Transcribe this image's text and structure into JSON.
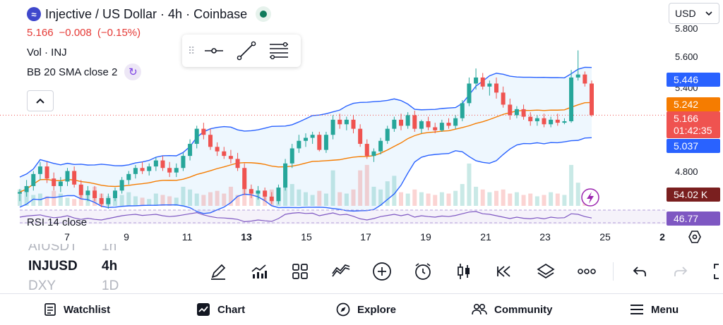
{
  "header": {
    "title": "Injective / US Dollar · 4h · Coinbase",
    "logo_letter": "≈",
    "price": "5.166",
    "change": "−0.008",
    "change_pct": "(−0.15%)",
    "volume_label": "Vol · INJ",
    "bb_label": "BB 20 SMA close 2",
    "rsi_label": "RSI 14 close"
  },
  "currency": {
    "label": "USD"
  },
  "price_axis": [
    "5.800",
    "5.600",
    "5.400",
    "4.800"
  ],
  "tags": {
    "bb_upper": "5.446",
    "bb_basis": "5.242",
    "last_price": "5.166",
    "countdown": "01:42:35",
    "bb_lower": "5.037",
    "volume": "54.02 K",
    "rsi": "46.77"
  },
  "time_axis": [
    "7",
    "9",
    "11",
    "13",
    "15",
    "17",
    "19",
    "21",
    "23",
    "25",
    "2"
  ],
  "symbol_wheel": [
    {
      "symbol": "AIUSDT",
      "tf": "1h",
      "state": "faded"
    },
    {
      "symbol": "INJUSD",
      "tf": "4h",
      "state": "active"
    },
    {
      "symbol": "DXY",
      "tf": "1D",
      "state": "faded"
    }
  ],
  "nav": {
    "watchlist": "Watchlist",
    "chart": "Chart",
    "explore": "Explore",
    "community": "Community",
    "menu": "Menu"
  },
  "colors": {
    "up": "#26a69a",
    "down": "#ef5350",
    "bb_band": "#2962ff",
    "bb_basis": "#f57c00",
    "rsi": "#7e57c2",
    "accent": "#2962ff"
  },
  "chart_data": {
    "type": "candlestick",
    "symbol": "INJUSD",
    "interval": "4h",
    "ylim": [
      4.55,
      5.85
    ],
    "candles": [
      [
        4.65,
        4.68,
        4.6,
        4.66
      ],
      [
        4.66,
        4.74,
        4.63,
        4.7
      ],
      [
        4.7,
        4.8,
        4.67,
        4.78
      ],
      [
        4.78,
        4.86,
        4.74,
        4.83
      ],
      [
        4.83,
        4.86,
        4.72,
        4.75
      ],
      [
        4.75,
        4.79,
        4.67,
        4.7
      ],
      [
        4.7,
        4.76,
        4.66,
        4.73
      ],
      [
        4.73,
        4.82,
        4.7,
        4.8
      ],
      [
        4.8,
        4.83,
        4.69,
        4.71
      ],
      [
        4.71,
        4.74,
        4.62,
        4.64
      ],
      [
        4.64,
        4.7,
        4.6,
        4.67
      ],
      [
        4.67,
        4.7,
        4.6,
        4.62
      ],
      [
        4.62,
        4.65,
        4.56,
        4.58
      ],
      [
        4.58,
        4.65,
        4.55,
        4.62
      ],
      [
        4.62,
        4.69,
        4.6,
        4.67
      ],
      [
        4.67,
        4.76,
        4.65,
        4.74
      ],
      [
        4.74,
        4.8,
        4.71,
        4.78
      ],
      [
        4.78,
        4.84,
        4.75,
        4.82
      ],
      [
        4.82,
        4.86,
        4.78,
        4.8
      ],
      [
        4.8,
        4.85,
        4.77,
        4.83
      ],
      [
        4.83,
        4.89,
        4.8,
        4.87
      ],
      [
        4.87,
        4.9,
        4.8,
        4.82
      ],
      [
        4.82,
        4.86,
        4.76,
        4.79
      ],
      [
        4.79,
        4.85,
        4.76,
        4.82
      ],
      [
        4.82,
        4.92,
        4.8,
        4.9
      ],
      [
        4.9,
        5.01,
        4.87,
        4.98
      ],
      [
        4.98,
        5.1,
        4.95,
        5.08
      ],
      [
        5.08,
        5.12,
        5.01,
        5.04
      ],
      [
        5.04,
        5.08,
        4.94,
        4.96
      ],
      [
        4.96,
        4.99,
        4.9,
        4.93
      ],
      [
        4.93,
        4.96,
        4.88,
        4.9
      ],
      [
        4.9,
        4.94,
        4.85,
        4.88
      ],
      [
        4.88,
        4.92,
        4.8,
        4.82
      ],
      [
        4.82,
        4.85,
        4.64,
        4.68
      ],
      [
        4.68,
        4.71,
        4.62,
        4.65
      ],
      [
        4.65,
        4.7,
        4.61,
        4.67
      ],
      [
        4.67,
        4.69,
        4.6,
        4.63
      ],
      [
        4.63,
        4.66,
        4.58,
        4.6
      ],
      [
        4.6,
        4.71,
        4.58,
        4.69
      ],
      [
        4.69,
        4.88,
        4.67,
        4.85
      ],
      [
        4.85,
        4.98,
        4.82,
        4.95
      ],
      [
        4.95,
        5.04,
        4.92,
        5.0
      ],
      [
        5.0,
        5.05,
        4.96,
        5.02
      ],
      [
        5.02,
        5.06,
        4.98,
        5.04
      ],
      [
        5.04,
        5.06,
        4.93,
        4.94
      ],
      [
        4.94,
        5.06,
        4.92,
        5.04
      ],
      [
        5.04,
        5.17,
        5.01,
        5.14
      ],
      [
        5.14,
        5.18,
        5.08,
        5.11
      ],
      [
        5.11,
        5.16,
        5.07,
        5.14
      ],
      [
        5.14,
        5.17,
        5.05,
        5.08
      ],
      [
        5.08,
        5.11,
        4.96,
        4.98
      ],
      [
        4.98,
        5.01,
        4.88,
        4.9
      ],
      [
        4.9,
        4.95,
        4.86,
        4.93
      ],
      [
        4.93,
        5.02,
        4.91,
        5.0
      ],
      [
        5.0,
        5.1,
        4.98,
        5.08
      ],
      [
        5.08,
        5.16,
        5.06,
        5.14
      ],
      [
        5.14,
        5.18,
        5.07,
        5.1
      ],
      [
        5.1,
        5.19,
        5.08,
        5.17
      ],
      [
        5.17,
        5.2,
        5.06,
        5.08
      ],
      [
        5.08,
        5.14,
        5.05,
        5.13
      ],
      [
        5.13,
        5.16,
        5.07,
        5.09
      ],
      [
        5.09,
        5.12,
        5.05,
        5.07
      ],
      [
        5.07,
        5.14,
        5.06,
        5.12
      ],
      [
        5.12,
        5.15,
        5.08,
        5.1
      ],
      [
        5.1,
        5.17,
        5.08,
        5.15
      ],
      [
        5.15,
        5.27,
        5.13,
        5.25
      ],
      [
        5.25,
        5.42,
        5.23,
        5.38
      ],
      [
        5.38,
        5.48,
        5.34,
        5.42
      ],
      [
        5.42,
        5.45,
        5.34,
        5.36
      ],
      [
        5.36,
        5.4,
        5.3,
        5.38
      ],
      [
        5.38,
        5.42,
        5.28,
        5.32
      ],
      [
        5.32,
        5.36,
        5.22,
        5.24
      ],
      [
        5.24,
        5.28,
        5.14,
        5.17
      ],
      [
        5.17,
        5.23,
        5.15,
        5.21
      ],
      [
        5.21,
        5.24,
        5.14,
        5.16
      ],
      [
        5.16,
        5.19,
        5.1,
        5.13
      ],
      [
        5.13,
        5.17,
        5.1,
        5.15
      ],
      [
        5.15,
        5.18,
        5.09,
        5.11
      ],
      [
        5.11,
        5.16,
        5.09,
        5.14
      ],
      [
        5.14,
        5.18,
        5.1,
        5.12
      ],
      [
        5.12,
        5.15,
        5.11,
        5.13
      ],
      [
        5.13,
        5.47,
        5.12,
        5.42
      ],
      [
        5.42,
        5.6,
        5.4,
        5.44
      ],
      [
        5.44,
        5.46,
        5.36,
        5.38
      ],
      [
        5.38,
        5.4,
        5.16,
        5.17
      ]
    ],
    "volume": [
      12,
      10,
      8,
      9,
      7,
      11,
      9,
      6,
      5,
      8,
      10,
      14,
      9,
      7,
      6,
      8,
      10,
      7,
      6,
      5,
      9,
      8,
      7,
      6,
      14,
      12,
      9,
      8,
      10,
      11,
      9,
      14,
      8,
      22,
      10,
      9,
      11,
      12,
      8,
      24,
      16,
      12,
      10,
      8,
      11,
      9,
      26,
      10,
      9,
      12,
      26,
      30,
      14,
      12,
      18,
      22,
      10,
      9,
      12,
      10,
      9,
      8,
      10,
      9,
      11,
      16,
      31,
      14,
      12,
      10,
      11,
      12,
      9,
      10,
      8,
      9,
      7,
      8,
      10,
      9,
      8,
      30,
      17,
      10,
      9
    ],
    "rsi": [
      50,
      54,
      56,
      58,
      52,
      48,
      50,
      55,
      47,
      42,
      46,
      42,
      40,
      45,
      50,
      55,
      58,
      60,
      56,
      58,
      60,
      55,
      52,
      54,
      58,
      62,
      66,
      58,
      52,
      48,
      47,
      45,
      42,
      34,
      36,
      40,
      37,
      35,
      45,
      60,
      64,
      66,
      63,
      64,
      55,
      60,
      65,
      58,
      60,
      53,
      44,
      40,
      45,
      52,
      56,
      60,
      55,
      60,
      50,
      55,
      52,
      50,
      54,
      52,
      56,
      62,
      68,
      70,
      62,
      60,
      55,
      50,
      45,
      50,
      46,
      44,
      48,
      44,
      50,
      47,
      48,
      62,
      60,
      52,
      47
    ]
  }
}
